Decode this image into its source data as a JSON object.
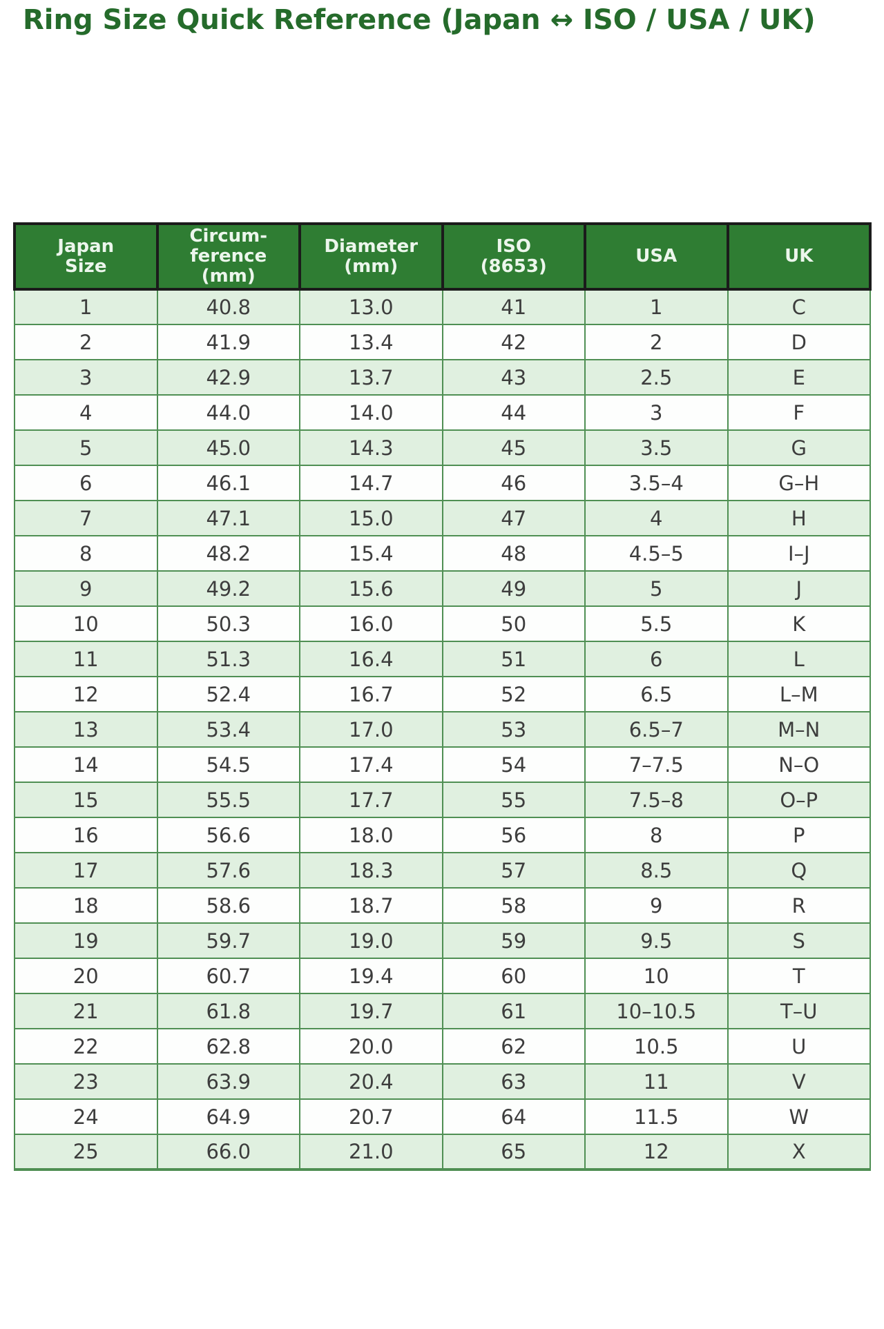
{
  "header": {
    "title": "Ring Size Quick Reference (Japan ↔ ISO / USA / UK)"
  },
  "colors": {
    "title_text": "#256b2b",
    "table_header_bg": "#2f7d33",
    "table_header_text": "#ecf6ec",
    "table_header_border": "#1b1b1b",
    "row_alt_bg": "#e0f0e0",
    "row_bg": "#fdfefd",
    "body_border": "#4f8f53",
    "body_text": "#3d3d3d",
    "page_bg": "#ffffff"
  },
  "table": {
    "columns": [
      {
        "id": "japan-size",
        "label": "Japan\nSize"
      },
      {
        "id": "circumference",
        "label": "Circum-\nference\n(mm)"
      },
      {
        "id": "diameter",
        "label": "Diameter\n(mm)"
      },
      {
        "id": "iso",
        "label": "ISO\n(8653)"
      },
      {
        "id": "usa",
        "label": "USA"
      },
      {
        "id": "uk",
        "label": "UK"
      }
    ],
    "rows": [
      [
        "1",
        "40.8",
        "13.0",
        "41",
        "1",
        "C"
      ],
      [
        "2",
        "41.9",
        "13.4",
        "42",
        "2",
        "D"
      ],
      [
        "3",
        "42.9",
        "13.7",
        "43",
        "2.5",
        "E"
      ],
      [
        "4",
        "44.0",
        "14.0",
        "44",
        "3",
        "F"
      ],
      [
        "5",
        "45.0",
        "14.3",
        "45",
        "3.5",
        "G"
      ],
      [
        "6",
        "46.1",
        "14.7",
        "46",
        "3.5–4",
        "G–H"
      ],
      [
        "7",
        "47.1",
        "15.0",
        "47",
        "4",
        "H"
      ],
      [
        "8",
        "48.2",
        "15.4",
        "48",
        "4.5–5",
        "I–J"
      ],
      [
        "9",
        "49.2",
        "15.6",
        "49",
        "5",
        "J"
      ],
      [
        "10",
        "50.3",
        "16.0",
        "50",
        "5.5",
        "K"
      ],
      [
        "11",
        "51.3",
        "16.4",
        "51",
        "6",
        "L"
      ],
      [
        "12",
        "52.4",
        "16.7",
        "52",
        "6.5",
        "L–M"
      ],
      [
        "13",
        "53.4",
        "17.0",
        "53",
        "6.5–7",
        "M–N"
      ],
      [
        "14",
        "54.5",
        "17.4",
        "54",
        "7–7.5",
        "N–O"
      ],
      [
        "15",
        "55.5",
        "17.7",
        "55",
        "7.5–8",
        "O–P"
      ],
      [
        "16",
        "56.6",
        "18.0",
        "56",
        "8",
        "P"
      ],
      [
        "17",
        "57.6",
        "18.3",
        "57",
        "8.5",
        "Q"
      ],
      [
        "18",
        "58.6",
        "18.7",
        "58",
        "9",
        "R"
      ],
      [
        "19",
        "59.7",
        "19.0",
        "59",
        "9.5",
        "S"
      ],
      [
        "20",
        "60.7",
        "19.4",
        "60",
        "10",
        "T"
      ],
      [
        "21",
        "61.8",
        "19.7",
        "61",
        "10–10.5",
        "T–U"
      ],
      [
        "22",
        "62.8",
        "20.0",
        "62",
        "10.5",
        "U"
      ],
      [
        "23",
        "63.9",
        "20.4",
        "63",
        "11",
        "V"
      ],
      [
        "24",
        "64.9",
        "20.7",
        "64",
        "11.5",
        "W"
      ],
      [
        "25",
        "66.0",
        "21.0",
        "65",
        "12",
        "X"
      ]
    ]
  }
}
